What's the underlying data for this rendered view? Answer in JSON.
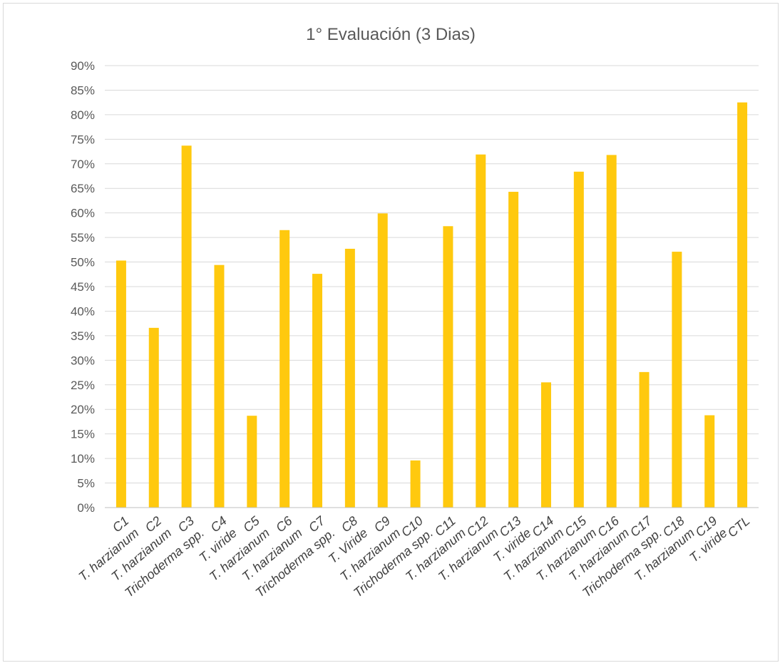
{
  "chart_data": {
    "type": "bar",
    "title": "1° Evaluación  (3 Dias)",
    "xlabel": "",
    "ylabel": "",
    "ylim": [
      0,
      90
    ],
    "y_ticks": [
      "0%",
      "5%",
      "10%",
      "15%",
      "20%",
      "25%",
      "30%",
      "35%",
      "40%",
      "45%",
      "50%",
      "55%",
      "60%",
      "65%",
      "70%",
      "75%",
      "80%",
      "85%",
      "90%"
    ],
    "grid": true,
    "legend": "none",
    "categories": [
      "C1\nT. harzianum",
      "C2\nT. harzianum",
      "C3\nTrichoderma spp.",
      "C4\nT. viride",
      "C5\nT. harzianum",
      "C6\nT. harzianum",
      "C7\nTrichoderma spp.",
      "C8\nT. Viride",
      "C9\nT. harzianum",
      "C10\nTrichoderma spp.",
      "C11\nT. harzianum",
      "C12\nT. harzianum",
      "C13\nT. viride",
      "C14\nT. harzianum",
      "C15\nT. harzianum",
      "C16\nT. harzianum",
      "C17\nTrichoderma spp.",
      "C18\nT. harzianum",
      "C19\nT. viride",
      "CTL"
    ],
    "values": [
      50.3,
      36.6,
      73.7,
      49.4,
      18.7,
      56.5,
      47.6,
      52.7,
      59.9,
      9.6,
      57.3,
      71.9,
      64.3,
      25.5,
      68.4,
      71.8,
      27.6,
      52.1,
      18.8,
      82.5
    ],
    "bar_color": "#FFC90E"
  }
}
